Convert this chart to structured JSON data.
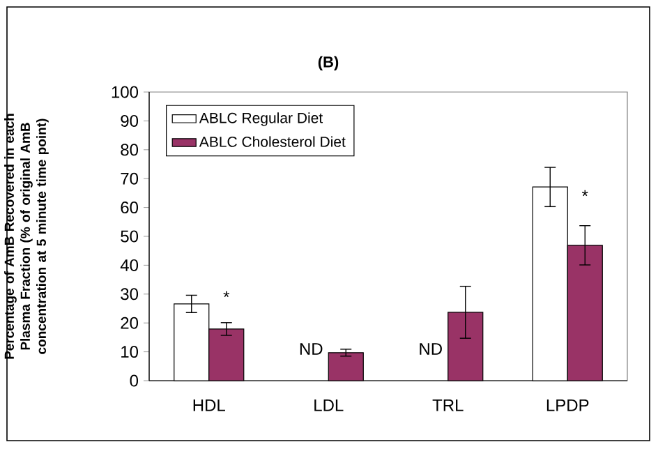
{
  "chart_data": {
    "type": "bar",
    "title": "(B)",
    "ylabel": "Percentage of AmB Recovered in each Plasma Fraction (% of original AmB concentration at 5 minute time point)",
    "categories": [
      "HDL",
      "LDL",
      "TRL",
      "LPDP"
    ],
    "series": [
      {
        "name": "ABLC Regular Diet",
        "color": "#ffffff",
        "values": [
          26.6,
          null,
          null,
          67.1
        ],
        "errors": [
          3,
          null,
          null,
          6.8
        ]
      },
      {
        "name": "ABLC Cholesterol Diet",
        "color": "#993366",
        "values": [
          17.9,
          9.7,
          23.7,
          46.9
        ],
        "errors": [
          2.2,
          1.2,
          9,
          6.8
        ]
      }
    ],
    "ylim": [
      0,
      100
    ],
    "yticks": [
      0,
      10,
      20,
      30,
      40,
      50,
      60,
      70,
      80,
      90,
      100
    ],
    "legend": "top left",
    "annotations": [
      {
        "text": "*",
        "x": "HDL",
        "y": 29
      },
      {
        "text": "ND",
        "x": "LDL",
        "y": 11
      },
      {
        "text": "ND",
        "x": "TRL",
        "y": 11
      },
      {
        "text": "*",
        "x": "LPDP",
        "y": 64
      }
    ]
  }
}
